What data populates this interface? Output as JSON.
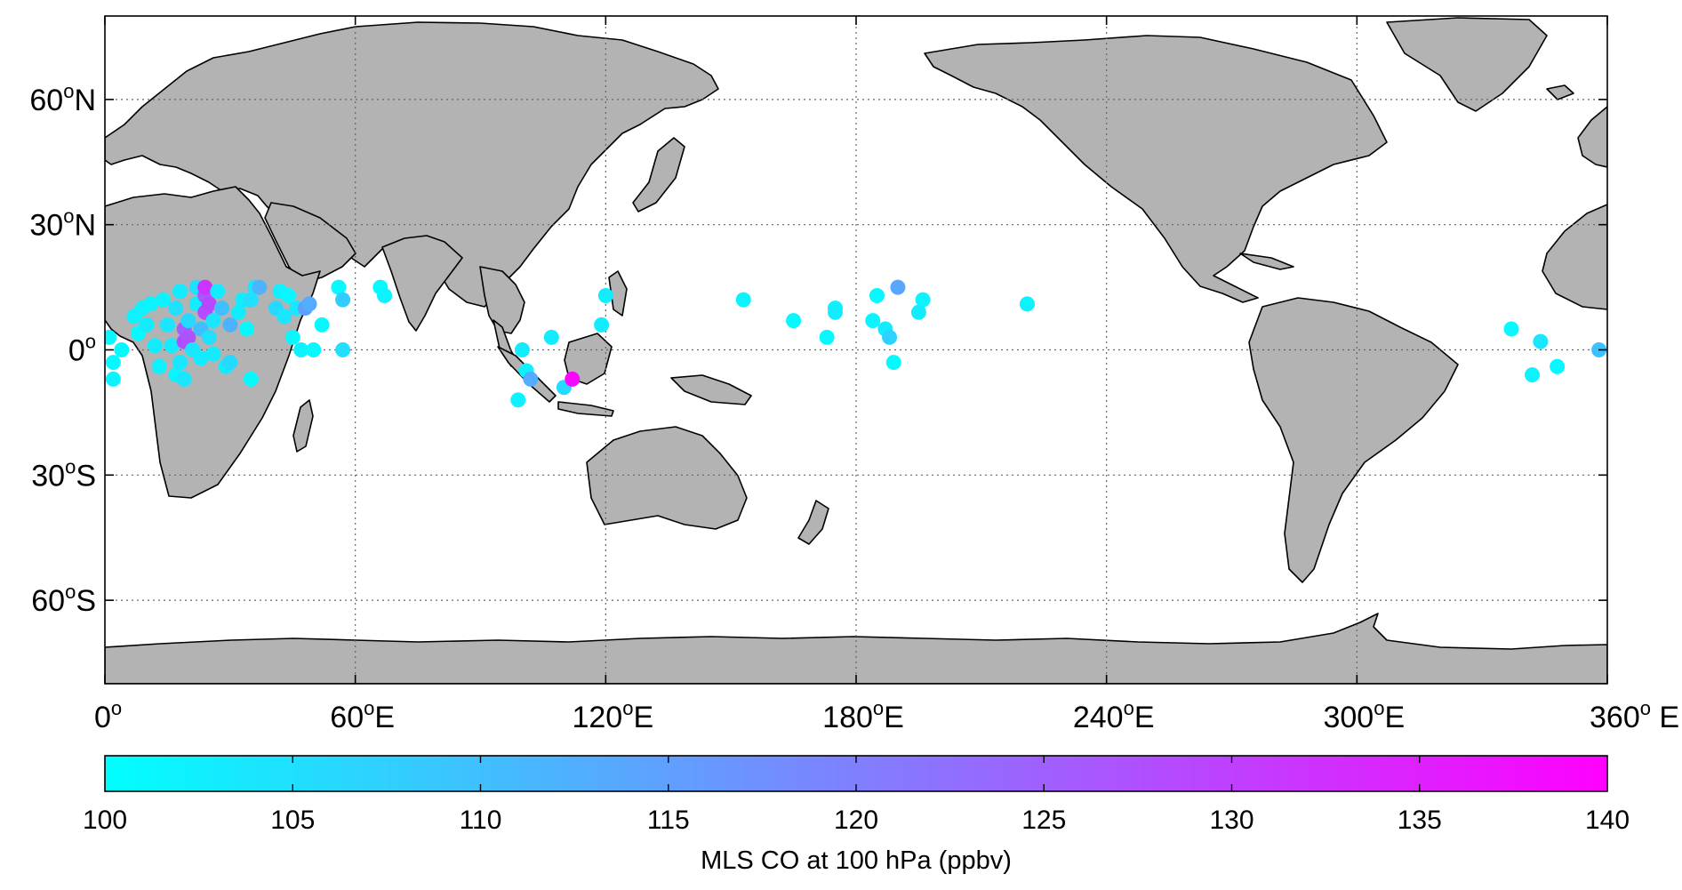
{
  "map": {
    "projection": "equirectangular",
    "lon_range": [
      0,
      360
    ],
    "lat_range": [
      -80,
      80
    ],
    "grid": true,
    "land_color": "#b3b3b3",
    "ocean_color": "#ffffff",
    "lat_ticks": [
      {
        "value": 60,
        "num": "60",
        "hem": "N"
      },
      {
        "value": 30,
        "num": "30",
        "hem": "N"
      },
      {
        "value": 0,
        "num": "0",
        "hem": ""
      },
      {
        "value": -30,
        "num": "30",
        "hem": "S"
      },
      {
        "value": -60,
        "num": "60",
        "hem": "S"
      }
    ],
    "lon_ticks": [
      {
        "value": 0,
        "num": "0",
        "suffix": ""
      },
      {
        "value": 60,
        "num": "60",
        "suffix": "E"
      },
      {
        "value": 120,
        "num": "120",
        "suffix": "E"
      },
      {
        "value": 180,
        "num": "180",
        "suffix": "E"
      },
      {
        "value": 240,
        "num": "240",
        "suffix": "E"
      },
      {
        "value": 300,
        "num": "300",
        "suffix": "E"
      },
      {
        "value": 360,
        "num": "360",
        "suffix": " E"
      }
    ]
  },
  "colorbar": {
    "title": "MLS CO at 100 hPa (ppbv)",
    "min": 100,
    "max": 140,
    "ticks": [
      "100",
      "105",
      "110",
      "115",
      "120",
      "125",
      "130",
      "135",
      "140"
    ],
    "color_low": "#00ffff",
    "color_high": "#ff00ff"
  },
  "chart_data": {
    "type": "scatter",
    "title": "",
    "xlabel": "",
    "ylabel": "",
    "xlim": [
      0,
      360
    ],
    "ylim": [
      -80,
      80
    ],
    "color_variable": "MLS CO at 100 hPa (ppbv)",
    "points": [
      {
        "lon": 1,
        "lat": 3,
        "co": 101
      },
      {
        "lon": 2,
        "lat": -3,
        "co": 101
      },
      {
        "lon": 2,
        "lat": -7,
        "co": 102
      },
      {
        "lon": 4,
        "lat": 0,
        "co": 101
      },
      {
        "lon": 7,
        "lat": 8,
        "co": 102
      },
      {
        "lon": 8,
        "lat": 4,
        "co": 101
      },
      {
        "lon": 9,
        "lat": 10,
        "co": 102
      },
      {
        "lon": 10,
        "lat": 6,
        "co": 103
      },
      {
        "lon": 11,
        "lat": 11,
        "co": 102
      },
      {
        "lon": 12,
        "lat": 1,
        "co": 103
      },
      {
        "lon": 13,
        "lat": -4,
        "co": 102
      },
      {
        "lon": 14,
        "lat": 12,
        "co": 102
      },
      {
        "lon": 15,
        "lat": 6,
        "co": 104
      },
      {
        "lon": 16,
        "lat": 1,
        "co": 103
      },
      {
        "lon": 17,
        "lat": 10,
        "co": 105
      },
      {
        "lon": 17,
        "lat": -6,
        "co": 102
      },
      {
        "lon": 18,
        "lat": -3,
        "co": 104
      },
      {
        "lon": 18,
        "lat": 14,
        "co": 103
      },
      {
        "lon": 19,
        "lat": 2,
        "co": 128
      },
      {
        "lon": 19,
        "lat": 5,
        "co": 125
      },
      {
        "lon": 19,
        "lat": -7,
        "co": 104
      },
      {
        "lon": 20,
        "lat": 7,
        "co": 106
      },
      {
        "lon": 20,
        "lat": 3,
        "co": 127
      },
      {
        "lon": 21,
        "lat": 0,
        "co": 104
      },
      {
        "lon": 22,
        "lat": 11,
        "co": 103
      },
      {
        "lon": 22,
        "lat": 15,
        "co": 105
      },
      {
        "lon": 23,
        "lat": 5,
        "co": 110
      },
      {
        "lon": 23,
        "lat": -2,
        "co": 103
      },
      {
        "lon": 24,
        "lat": 13,
        "co": 126
      },
      {
        "lon": 24,
        "lat": 9,
        "co": 128
      },
      {
        "lon": 24,
        "lat": 15,
        "co": 132
      },
      {
        "lon": 25,
        "lat": 11,
        "co": 129
      },
      {
        "lon": 25,
        "lat": 3,
        "co": 105
      },
      {
        "lon": 26,
        "lat": -1,
        "co": 103
      },
      {
        "lon": 26,
        "lat": 7,
        "co": 104
      },
      {
        "lon": 27,
        "lat": 14,
        "co": 103
      },
      {
        "lon": 28,
        "lat": 10,
        "co": 110
      },
      {
        "lon": 29,
        "lat": -4,
        "co": 103
      },
      {
        "lon": 30,
        "lat": -3,
        "co": 106
      },
      {
        "lon": 30,
        "lat": 6,
        "co": 112
      },
      {
        "lon": 32,
        "lat": 9,
        "co": 103
      },
      {
        "lon": 33,
        "lat": 12,
        "co": 103
      },
      {
        "lon": 34,
        "lat": 5,
        "co": 101
      },
      {
        "lon": 35,
        "lat": 12,
        "co": 105
      },
      {
        "lon": 36,
        "lat": 15,
        "co": 104
      },
      {
        "lon": 37,
        "lat": 15,
        "co": 112
      },
      {
        "lon": 35,
        "lat": -7,
        "co": 101
      },
      {
        "lon": 41,
        "lat": 10,
        "co": 106
      },
      {
        "lon": 42,
        "lat": 14,
        "co": 102
      },
      {
        "lon": 43,
        "lat": 8,
        "co": 104
      },
      {
        "lon": 44,
        "lat": 13,
        "co": 101
      },
      {
        "lon": 45,
        "lat": 3,
        "co": 101
      },
      {
        "lon": 46,
        "lat": 10,
        "co": 104
      },
      {
        "lon": 47,
        "lat": 0,
        "co": 102
      },
      {
        "lon": 48,
        "lat": 10,
        "co": 115
      },
      {
        "lon": 49,
        "lat": 11,
        "co": 113
      },
      {
        "lon": 50,
        "lat": 0,
        "co": 101
      },
      {
        "lon": 52,
        "lat": 6,
        "co": 101
      },
      {
        "lon": 56,
        "lat": 15,
        "co": 101
      },
      {
        "lon": 57,
        "lat": 12,
        "co": 108
      },
      {
        "lon": 57,
        "lat": 0,
        "co": 105
      },
      {
        "lon": 66,
        "lat": 15,
        "co": 101
      },
      {
        "lon": 67,
        "lat": 13,
        "co": 102
      },
      {
        "lon": 99,
        "lat": -12,
        "co": 102
      },
      {
        "lon": 100,
        "lat": 0,
        "co": 103
      },
      {
        "lon": 101,
        "lat": -5,
        "co": 102
      },
      {
        "lon": 102,
        "lat": -7,
        "co": 113
      },
      {
        "lon": 107,
        "lat": 3,
        "co": 103
      },
      {
        "lon": 110,
        "lat": -9,
        "co": 106
      },
      {
        "lon": 112,
        "lat": -7,
        "co": 139
      },
      {
        "lon": 119,
        "lat": 6,
        "co": 103
      },
      {
        "lon": 120,
        "lat": 13,
        "co": 103
      },
      {
        "lon": 153,
        "lat": 12,
        "co": 102
      },
      {
        "lon": 165,
        "lat": 7,
        "co": 101
      },
      {
        "lon": 173,
        "lat": 3,
        "co": 101
      },
      {
        "lon": 175,
        "lat": 10,
        "co": 102
      },
      {
        "lon": 175,
        "lat": 9,
        "co": 103
      },
      {
        "lon": 184,
        "lat": 7,
        "co": 102
      },
      {
        "lon": 185,
        "lat": 13,
        "co": 101
      },
      {
        "lon": 187,
        "lat": 5,
        "co": 103
      },
      {
        "lon": 188,
        "lat": 3,
        "co": 107
      },
      {
        "lon": 189,
        "lat": -3,
        "co": 101
      },
      {
        "lon": 190,
        "lat": 15,
        "co": 114
      },
      {
        "lon": 195,
        "lat": 9,
        "co": 103
      },
      {
        "lon": 196,
        "lat": 12,
        "co": 102
      },
      {
        "lon": 221,
        "lat": 11,
        "co": 102
      },
      {
        "lon": 337,
        "lat": 5,
        "co": 101
      },
      {
        "lon": 342,
        "lat": -6,
        "co": 102
      },
      {
        "lon": 344,
        "lat": 2,
        "co": 104
      },
      {
        "lon": 348,
        "lat": -4,
        "co": 101
      },
      {
        "lon": 358,
        "lat": 0,
        "co": 110
      }
    ]
  }
}
